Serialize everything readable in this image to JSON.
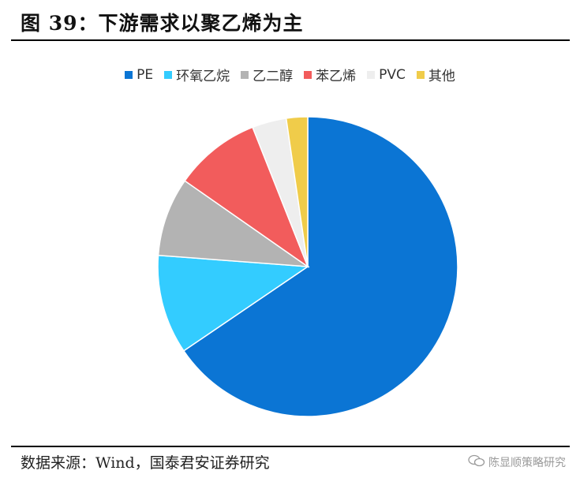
{
  "header": {
    "title": "图 39：下游需求以聚乙烯为主"
  },
  "chart_data": {
    "type": "pie",
    "slices": [
      {
        "label": "PE",
        "value": 65.5,
        "color": "#0B75D4"
      },
      {
        "label": "环氧乙烷",
        "value": 10.7,
        "color": "#33CCFF"
      },
      {
        "label": "乙二醇",
        "value": 8.5,
        "color": "#B3B3B3"
      },
      {
        "label": "苯乙烯",
        "value": 9.3,
        "color": "#F25C5C"
      },
      {
        "label": "PVC",
        "value": 3.7,
        "color": "#EEEEEE"
      },
      {
        "label": "其他",
        "value": 2.3,
        "color": "#F0CC4A"
      }
    ],
    "legend_position": "top-center",
    "start_angle": "12 o'clock, clockwise"
  },
  "footer": {
    "source": "数据来源：Wind，国泰君安证券研究",
    "watermark": "陈显顺策略研究"
  }
}
